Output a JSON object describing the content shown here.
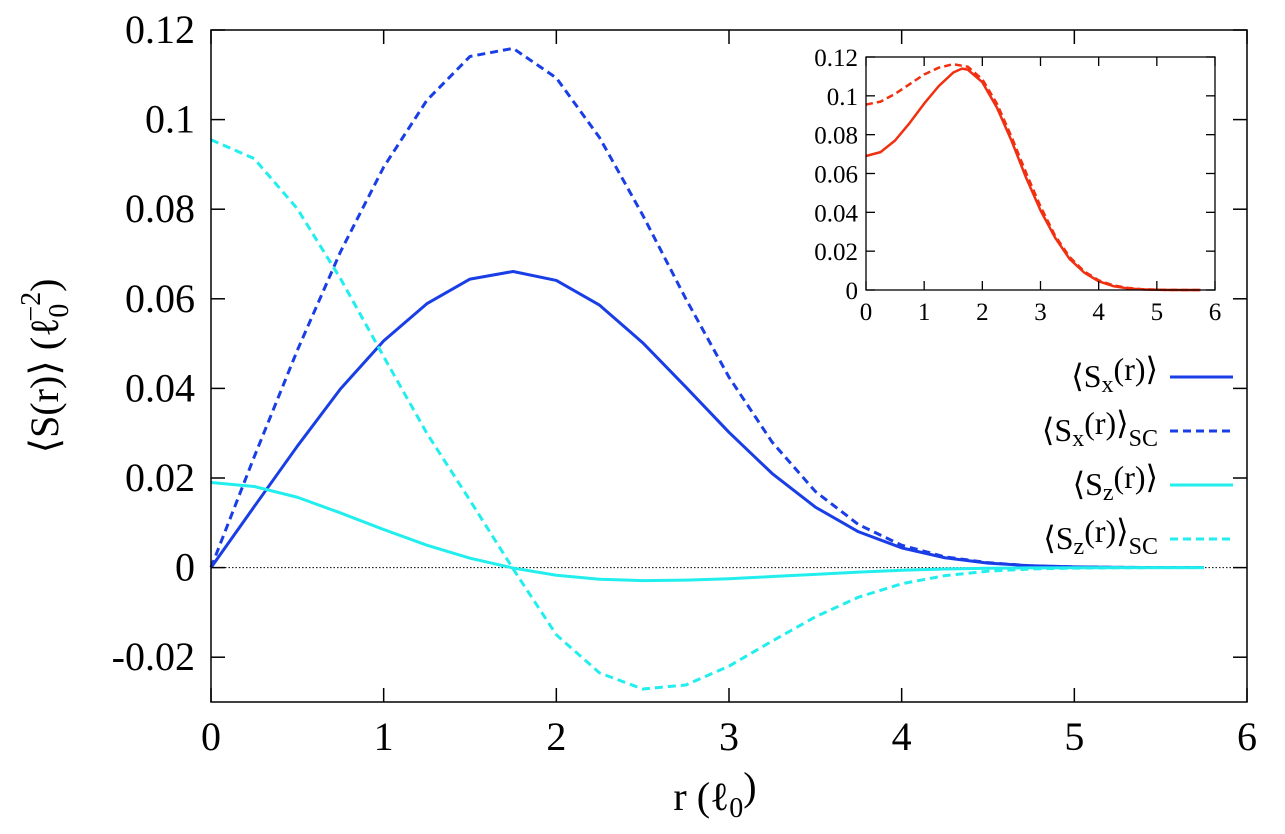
{
  "chart_data": [
    {
      "type": "line",
      "xlabel": "r (ℓ0)",
      "ylabel": "⟨S(r)⟩ (ℓ0^−2)",
      "xlim": [
        0,
        6
      ],
      "ylim": [
        -0.03,
        0.12
      ],
      "xticks": [
        "0",
        "1",
        "2",
        "3",
        "4",
        "5",
        "6"
      ],
      "yticks": [
        "-0.02",
        "0",
        "0.02",
        "0.04",
        "0.06",
        "0.08",
        "0.1",
        "0.12"
      ],
      "zero_line": true,
      "legend_position": "right-middle",
      "series": [
        {
          "name": "Sx(r)",
          "color": "#1a3ee6",
          "dashed": false,
          "x": [
            0,
            0.25,
            0.5,
            0.75,
            1.0,
            1.25,
            1.5,
            1.75,
            2.0,
            2.25,
            2.5,
            2.75,
            3.0,
            3.25,
            3.5,
            3.75,
            4.0,
            4.25,
            4.5,
            4.75,
            5.0,
            5.25,
            5.5,
            5.75
          ],
          "y": [
            0,
            0.0136,
            0.0271,
            0.0399,
            0.0506,
            0.0589,
            0.0644,
            0.0661,
            0.0641,
            0.0586,
            0.0502,
            0.0403,
            0.0302,
            0.021,
            0.0135,
            0.008,
            0.0044,
            0.0022,
            0.001,
            0.0004,
            0.00015,
            5e-05,
            2e-05,
            1e-05
          ]
        },
        {
          "name": "Sx(r)SC",
          "color": "#1a3ee6",
          "dashed": true,
          "x": [
            0,
            0.25,
            0.5,
            0.75,
            1.0,
            1.25,
            1.5,
            1.75,
            2.0,
            2.25,
            2.5,
            2.75,
            3.0,
            3.25,
            3.5,
            3.75,
            4.0,
            4.25,
            4.5,
            4.75,
            5.0,
            5.25,
            5.5,
            5.75
          ],
          "y": [
            0,
            0.0247,
            0.0485,
            0.0705,
            0.0894,
            0.1043,
            0.1141,
            0.1159,
            0.1093,
            0.096,
            0.0787,
            0.06,
            0.0425,
            0.028,
            0.017,
            0.0096,
            0.005,
            0.0024,
            0.0011,
            0.0004,
            0.00015,
            5e-05,
            2e-05,
            1e-05
          ]
        },
        {
          "name": "Sz(r)",
          "color": "#22eeee",
          "dashed": false,
          "x": [
            0,
            0.25,
            0.5,
            0.75,
            1.0,
            1.25,
            1.5,
            1.75,
            2.0,
            2.25,
            2.5,
            2.75,
            3.0,
            3.25,
            3.5,
            3.75,
            4.0,
            4.25,
            4.5,
            4.75,
            5.0,
            5.25,
            5.5,
            5.75
          ],
          "y": [
            0.019,
            0.0181,
            0.0157,
            0.0122,
            0.0085,
            0.005,
            0.0021,
            -0.0001,
            -0.0017,
            -0.0026,
            -0.0029,
            -0.0028,
            -0.0025,
            -0.002,
            -0.0015,
            -0.001,
            -0.0006,
            -0.0003,
            -0.00015,
            -7e-05,
            -3e-05,
            -1e-05,
            0,
            0
          ]
        },
        {
          "name": "Sz(r)SC",
          "color": "#22eeee",
          "dashed": true,
          "x": [
            0,
            0.25,
            0.5,
            0.75,
            1.0,
            1.25,
            1.5,
            1.75,
            2.0,
            2.25,
            2.5,
            2.75,
            3.0,
            3.25,
            3.5,
            3.75,
            4.0,
            4.25,
            4.5,
            4.75,
            5.0,
            5.25,
            5.5,
            5.75
          ],
          "y": [
            0.0955,
            0.0913,
            0.0801,
            0.0645,
            0.0471,
            0.03,
            0.015,
            -0.0003,
            -0.015,
            -0.0235,
            -0.0271,
            -0.0262,
            -0.022,
            -0.0164,
            -0.011,
            -0.0066,
            -0.0036,
            -0.0018,
            -0.0008,
            -0.0003,
            -0.00012,
            -4e-05,
            -1e-05,
            0
          ]
        }
      ],
      "legend": [
        {
          "base": "⟨S",
          "sub1": "x",
          "mid": "(r)⟩",
          "sub2": ""
        },
        {
          "base": "⟨S",
          "sub1": "x",
          "mid": "(r)⟩",
          "sub2": "SC"
        },
        {
          "base": "⟨S",
          "sub1": "z",
          "mid": "(r)⟩",
          "sub2": ""
        },
        {
          "base": "⟨S",
          "sub1": "z",
          "mid": "(r)⟩",
          "sub2": "SC"
        }
      ]
    },
    {
      "type": "line",
      "role": "inset",
      "xlim": [
        0,
        6
      ],
      "ylim": [
        0,
        0.12
      ],
      "xticks": [
        "0",
        "1",
        "2",
        "3",
        "4",
        "5",
        "6"
      ],
      "yticks": [
        "0",
        "0.02",
        "0.04",
        "0.06",
        "0.08",
        "0.1",
        "0.12"
      ],
      "series": [
        {
          "color": "#f03010",
          "dashed": false,
          "x": [
            0,
            0.25,
            0.5,
            0.75,
            1.0,
            1.25,
            1.5,
            1.65,
            1.75,
            2.0,
            2.25,
            2.5,
            2.75,
            3.0,
            3.25,
            3.5,
            3.75,
            4.0,
            4.25,
            4.5,
            4.75,
            5.0,
            5.25,
            5.5,
            5.75
          ],
          "y": [
            0.069,
            0.071,
            0.077,
            0.086,
            0.096,
            0.105,
            0.112,
            0.114,
            0.1135,
            0.107,
            0.094,
            0.077,
            0.058,
            0.041,
            0.027,
            0.016,
            0.009,
            0.0045,
            0.002,
            0.0008,
            0.0003,
            0.0001,
            3e-05,
            1e-05,
            0
          ]
        },
        {
          "color": "#f03010",
          "dashed": true,
          "x": [
            0,
            0.25,
            0.5,
            0.75,
            1.0,
            1.25,
            1.5,
            1.75,
            2.0,
            2.25,
            2.5,
            2.75,
            3.0,
            3.25,
            3.5,
            3.75,
            4.0,
            4.25,
            4.5,
            4.75,
            5.0,
            5.25,
            5.5,
            5.75
          ],
          "y": [
            0.0955,
            0.097,
            0.101,
            0.106,
            0.111,
            0.1145,
            0.1163,
            0.115,
            0.1085,
            0.096,
            0.079,
            0.0605,
            0.043,
            0.028,
            0.017,
            0.0096,
            0.005,
            0.0024,
            0.0011,
            0.0004,
            0.00015,
            5e-05,
            2e-05,
            0
          ]
        }
      ]
    }
  ]
}
